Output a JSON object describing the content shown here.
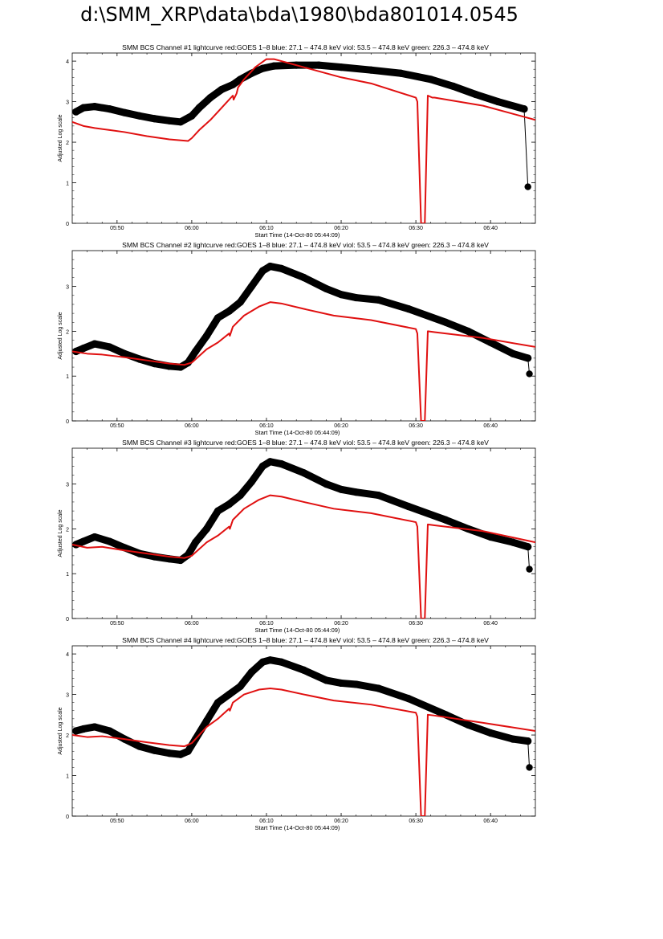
{
  "page": {
    "title": "d:\\SMM_XRP\\data\\bda\\1980\\bda801014.0545"
  },
  "colors": {
    "goes": "#e01010",
    "bcs": "#000000",
    "axis": "#000000"
  },
  "chart_data": [
    {
      "type": "line",
      "title": "SMM BCS Channel #1 lightcurve  red:GOES 1–8  blue: 27.1 – 474.8 keV  viol: 53.5 – 474.8 keV  green: 226.3 – 474.8 keV",
      "xlabel": "Start Time (14-Oct-80 05:44:09)",
      "ylabel": "Adjusted Log scale",
      "xlim": [
        0,
        62
      ],
      "ylim": [
        0,
        4.2
      ],
      "x_ticks": [
        6,
        16,
        26,
        36,
        46,
        56
      ],
      "x_tick_labels": [
        "05:50",
        "06:00",
        "06:10",
        "06:20",
        "06:30",
        "06:40"
      ],
      "y_ticks": [
        0,
        1,
        2,
        3,
        4
      ],
      "y_tick_labels": [
        "0",
        "1",
        "2",
        "3",
        "4"
      ],
      "series": [
        {
          "name": "BCS",
          "style": "dots",
          "x": [
            0.5,
            1.5,
            3,
            5,
            7,
            9,
            11,
            13,
            14.5,
            16,
            17,
            18.5,
            20,
            21.5,
            22.5,
            24,
            25.5,
            27,
            30,
            33,
            36,
            40,
            44,
            48,
            51,
            54,
            57,
            60.5,
            61
          ],
          "y": [
            2.75,
            2.85,
            2.88,
            2.82,
            2.73,
            2.65,
            2.58,
            2.53,
            2.5,
            2.65,
            2.85,
            3.1,
            3.3,
            3.42,
            3.55,
            3.7,
            3.82,
            3.88,
            3.9,
            3.9,
            3.85,
            3.78,
            3.7,
            3.55,
            3.38,
            3.18,
            3.0,
            2.82,
            0.9
          ],
          "end_marker": [
            61,
            0.9
          ]
        },
        {
          "name": "GOES 1–8",
          "style": "line",
          "x": [
            0,
            1.5,
            3,
            5,
            7,
            10,
            13,
            15.5,
            16,
            17,
            18.5,
            20,
            21.5,
            21.6,
            22,
            22.2,
            23,
            24.5,
            26,
            27,
            29,
            32,
            36,
            40,
            46,
            46.2,
            46.7,
            47.2,
            47.6,
            48.2,
            48.5,
            55,
            62
          ],
          "y": [
            2.5,
            2.4,
            2.35,
            2.3,
            2.25,
            2.15,
            2.07,
            2.03,
            2.1,
            2.3,
            2.55,
            2.85,
            3.15,
            3.05,
            3.2,
            3.35,
            3.55,
            3.85,
            4.05,
            4.05,
            3.95,
            3.8,
            3.6,
            3.45,
            3.1,
            3.0,
            0,
            0,
            3.15,
            3.1,
            3.1,
            2.9,
            2.55
          ]
        }
      ]
    },
    {
      "type": "line",
      "title": "SMM BCS Channel #2 lightcurve  red:GOES 1–8  blue: 27.1 – 474.8 keV  viol: 53.5 – 474.8 keV  green: 226.3 – 474.8 keV",
      "xlabel": "Start Time (14-Oct-80 05:44:09)",
      "ylabel": "Adjusted Log scale",
      "xlim": [
        0,
        62
      ],
      "ylim": [
        0,
        3.8
      ],
      "x_ticks": [
        6,
        16,
        26,
        36,
        46,
        56
      ],
      "x_tick_labels": [
        "05:50",
        "06:00",
        "06:10",
        "06:20",
        "06:30",
        "06:40"
      ],
      "y_ticks": [
        0,
        1,
        2,
        3
      ],
      "y_tick_labels": [
        "0",
        "1",
        "2",
        "3"
      ],
      "series": [
        {
          "name": "BCS",
          "style": "dots",
          "x": [
            0.5,
            1.5,
            3,
            5,
            7,
            9,
            11,
            13,
            14.5,
            15.5,
            16.5,
            18,
            19.5,
            21,
            22.5,
            24,
            25.5,
            26.5,
            28,
            31,
            34,
            36,
            38,
            41,
            45,
            50,
            53,
            56,
            59,
            61,
            61.2
          ],
          "y": [
            1.55,
            1.62,
            1.72,
            1.65,
            1.5,
            1.38,
            1.28,
            1.22,
            1.2,
            1.3,
            1.55,
            1.9,
            2.3,
            2.45,
            2.65,
            3.0,
            3.35,
            3.45,
            3.4,
            3.2,
            2.95,
            2.82,
            2.75,
            2.7,
            2.5,
            2.2,
            2.0,
            1.75,
            1.5,
            1.4,
            1.05
          ],
          "end_marker": [
            61.2,
            1.05
          ]
        },
        {
          "name": "GOES 1–8",
          "style": "line",
          "x": [
            0,
            2,
            4,
            7,
            10,
            13,
            15,
            16,
            17,
            18,
            19.5,
            21,
            21.1,
            21.5,
            23,
            25,
            26.5,
            28,
            31,
            35,
            40,
            46,
            46.2,
            46.7,
            47.2,
            47.6,
            48.5,
            55,
            62
          ],
          "y": [
            1.55,
            1.5,
            1.48,
            1.42,
            1.35,
            1.28,
            1.25,
            1.3,
            1.45,
            1.6,
            1.75,
            1.95,
            1.9,
            2.1,
            2.35,
            2.55,
            2.65,
            2.62,
            2.5,
            2.35,
            2.25,
            2.05,
            1.95,
            0,
            0,
            2.0,
            1.98,
            1.85,
            1.65
          ]
        }
      ]
    },
    {
      "type": "line",
      "title": "SMM BCS Channel #3 lightcurve  red:GOES 1–8  blue: 27.1 – 474.8 keV  viol: 53.5 – 474.8 keV  green: 226.3 – 474.8 keV",
      "xlabel": "Start Time (14-Oct-80 05:44:09)",
      "ylabel": "Adjusted Log scale",
      "xlim": [
        0,
        62
      ],
      "ylim": [
        0,
        3.8
      ],
      "x_ticks": [
        6,
        16,
        26,
        36,
        46,
        56
      ],
      "x_tick_labels": [
        "05:50",
        "06:00",
        "06:10",
        "06:20",
        "06:30",
        "06:40"
      ],
      "y_ticks": [
        0,
        1,
        2,
        3
      ],
      "y_tick_labels": [
        "0",
        "1",
        "2",
        "3"
      ],
      "series": [
        {
          "name": "BCS",
          "style": "dots",
          "x": [
            0.5,
            1.5,
            3,
            5,
            7,
            9,
            11,
            13,
            14.5,
            15.5,
            16.5,
            18,
            19.5,
            21,
            22.5,
            24,
            25.5,
            26.5,
            28,
            31,
            34,
            36,
            38,
            41,
            45,
            50,
            53,
            56,
            59,
            61,
            61.2
          ],
          "y": [
            1.65,
            1.72,
            1.82,
            1.72,
            1.58,
            1.45,
            1.38,
            1.33,
            1.3,
            1.42,
            1.7,
            2.0,
            2.4,
            2.55,
            2.75,
            3.05,
            3.4,
            3.5,
            3.45,
            3.25,
            3.0,
            2.88,
            2.82,
            2.75,
            2.5,
            2.2,
            2.0,
            1.82,
            1.7,
            1.6,
            1.1
          ],
          "end_marker": [
            61.2,
            1.1
          ]
        },
        {
          "name": "GOES 1–8",
          "style": "line",
          "x": [
            0,
            2,
            4,
            7,
            10,
            13,
            15,
            16,
            17,
            18,
            19.5,
            21,
            21.1,
            21.5,
            23,
            25,
            26.5,
            28,
            31,
            35,
            40,
            46,
            46.2,
            46.7,
            47.2,
            47.6,
            48.5,
            55,
            62
          ],
          "y": [
            1.65,
            1.58,
            1.6,
            1.52,
            1.45,
            1.38,
            1.35,
            1.4,
            1.55,
            1.7,
            1.85,
            2.05,
            2.0,
            2.2,
            2.45,
            2.65,
            2.75,
            2.72,
            2.6,
            2.45,
            2.35,
            2.15,
            2.05,
            0,
            0,
            2.1,
            2.08,
            1.95,
            1.7
          ]
        }
      ]
    },
    {
      "type": "line",
      "title": "SMM BCS Channel #4 lightcurve  red:GOES 1–8  blue: 27.1 – 474.8 keV  viol: 53.5 – 474.8 keV  green: 226.3 – 474.8 keV",
      "xlabel": "Start Time (14-Oct-80 05:44:09)",
      "ylabel": "Adjusted Log scale",
      "xlim": [
        0,
        62
      ],
      "ylim": [
        0,
        4.2
      ],
      "x_ticks": [
        6,
        16,
        26,
        36,
        46,
        56
      ],
      "x_tick_labels": [
        "05:50",
        "06:00",
        "06:10",
        "06:20",
        "06:30",
        "06:40"
      ],
      "y_ticks": [
        0,
        1,
        2,
        3,
        4
      ],
      "y_tick_labels": [
        "0",
        "1",
        "2",
        "3",
        "4"
      ],
      "series": [
        {
          "name": "BCS",
          "style": "dots",
          "x": [
            0.5,
            1.5,
            3,
            5,
            7,
            9,
            11,
            13,
            14.5,
            15.5,
            16.5,
            18,
            19.5,
            21,
            22.5,
            24,
            25.5,
            26.5,
            28,
            31,
            34,
            36,
            38,
            41,
            45,
            50,
            53,
            56,
            59,
            61,
            61.2
          ],
          "y": [
            2.1,
            2.15,
            2.2,
            2.1,
            1.9,
            1.72,
            1.62,
            1.55,
            1.52,
            1.6,
            1.9,
            2.35,
            2.8,
            3.0,
            3.2,
            3.55,
            3.8,
            3.85,
            3.8,
            3.6,
            3.35,
            3.28,
            3.25,
            3.15,
            2.9,
            2.5,
            2.25,
            2.05,
            1.9,
            1.85,
            1.2
          ],
          "end_marker": [
            61.2,
            1.2
          ]
        },
        {
          "name": "GOES 1–8",
          "style": "line",
          "x": [
            0,
            2,
            4,
            7,
            10,
            13,
            15,
            16,
            17,
            18,
            19.5,
            21,
            21.1,
            21.5,
            23,
            25,
            26.5,
            28,
            31,
            35,
            40,
            46,
            46.2,
            46.7,
            47.2,
            47.6,
            48.5,
            55,
            62
          ],
          "y": [
            2.0,
            1.95,
            1.97,
            1.9,
            1.82,
            1.75,
            1.72,
            1.8,
            2.0,
            2.2,
            2.4,
            2.65,
            2.6,
            2.8,
            3.0,
            3.12,
            3.15,
            3.12,
            3.0,
            2.85,
            2.75,
            2.55,
            2.45,
            0,
            0,
            2.5,
            2.48,
            2.3,
            2.1
          ]
        }
      ]
    }
  ]
}
